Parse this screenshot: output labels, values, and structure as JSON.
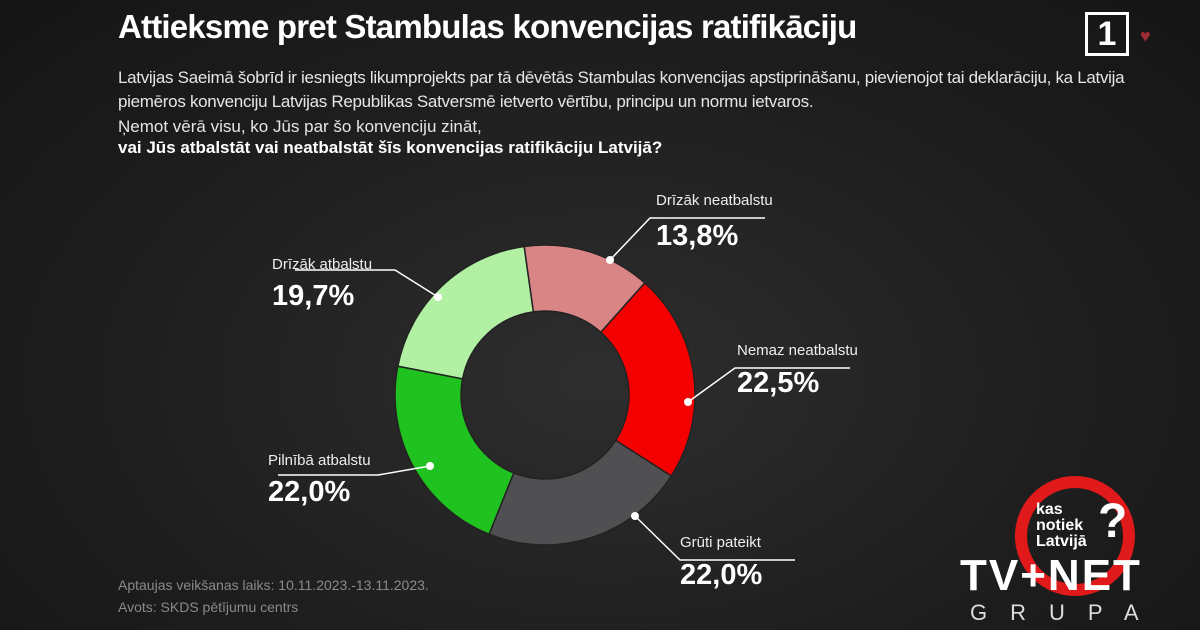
{
  "header": {
    "title": "Attieksme pret Stambulas konvencijas ratifikāciju",
    "description": "Latvijas Saeimā šobrīd ir iesniegts likumprojekts par tā dēvētās Stambulas konvencijas apstiprināšanu, pievienojot tai deklarāciju, ka Latvija piemēros konvenciju Latvijas Republikas Satversmē ietverto vērtību, principu un normu ietvaros.",
    "question_intro": "Ņemot vērā visu, ko Jūs par šo konvenciju zināt,",
    "question": "vai Jūs atbalstāt vai neatbalstāt šīs konvencijas ratifikāciju Latvijā?",
    "channel_logo": "1"
  },
  "chart_data": {
    "type": "pie",
    "donut": true,
    "slices": [
      {
        "label": "Drīzāk neatbalstu",
        "value": 13.8,
        "display": "13,8%",
        "color": "#d98585"
      },
      {
        "label": "Nemaz neatbalstu",
        "value": 22.5,
        "display": "22,5%",
        "color": "#f50000"
      },
      {
        "label": "Grūti pateikt",
        "value": 22.0,
        "display": "22,0%",
        "color": "#505052"
      },
      {
        "label": "Pilnībā atbalstu",
        "value": 22.0,
        "display": "22,0%",
        "color": "#1fc21f"
      },
      {
        "label": "Drīzāk atbalstu",
        "value": 19.7,
        "display": "19,7%",
        "color": "#b2f0a4"
      }
    ]
  },
  "footer": {
    "dates": "Aptaujas veikšanas laiks: 10.11.2023.-13.11.2023.",
    "source": "Avots: SKDS pētījumu centrs"
  },
  "branding": {
    "kas": "kas",
    "notiek": "notiek",
    "latvija": "Latvijā",
    "q": "?",
    "tvnet": "TV+NET",
    "grupa": "GRUPA"
  }
}
